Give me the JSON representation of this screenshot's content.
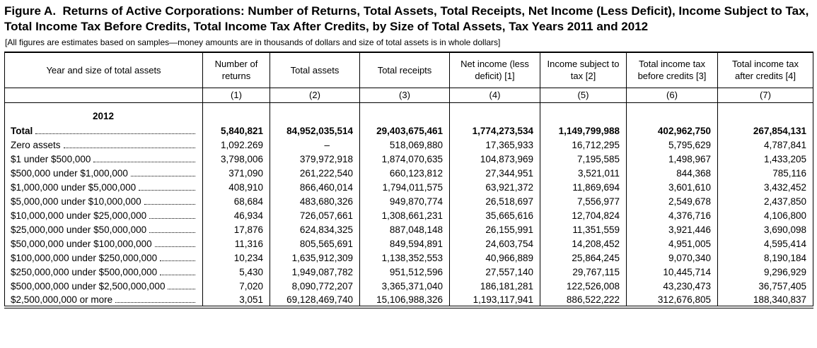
{
  "colors": {
    "text": "#000000",
    "background": "#ffffff",
    "border": "#000000"
  },
  "title": "Figure A.  Returns of Active Corporations: Number of Returns, Total Assets, Total Receipts, Net Income (Less Deficit), Income Subject to Tax, Total Income Tax Before Credits, Total Income Tax After Credits, by Size of Total Assets, Tax Years 2011 and 2012",
  "note": "[All figures are estimates based on samples—money amounts are in thousands of dollars and size of total assets is in whole dollars]",
  "table": {
    "columns": [
      {
        "label": "Year and size of total assets",
        "number": ""
      },
      {
        "label": "Number of returns",
        "number": "(1)"
      },
      {
        "label": "Total assets",
        "number": "(2)"
      },
      {
        "label": "Total receipts",
        "number": "(3)"
      },
      {
        "label": "Net income (less deficit) [1]",
        "number": "(4)"
      },
      {
        "label": "Income subject to tax [2]",
        "number": "(5)"
      },
      {
        "label": "Total income tax before credits [3]",
        "number": "(6)"
      },
      {
        "label": "Total income tax after credits [4]",
        "number": "(7)"
      }
    ],
    "section": "2012",
    "rows": [
      {
        "label": "Total",
        "bold": true,
        "values": [
          "5,840,821",
          "84,952,035,514",
          "29,403,675,461",
          "1,774,273,534",
          "1,149,799,988",
          "402,962,750",
          "267,854,131"
        ]
      },
      {
        "label": "Zero assets",
        "bold": false,
        "values": [
          "1,092.269",
          "–",
          "518,069,880",
          "17,365,933",
          "16,712,295",
          "5,795,629",
          "4,787,841"
        ]
      },
      {
        "label": "$1 under $500,000",
        "bold": false,
        "values": [
          "3,798,006",
          "379,972,918",
          "1,874,070,635",
          "104,873,969",
          "7,195,585",
          "1,498,967",
          "1,433,205"
        ]
      },
      {
        "label": "$500,000 under $1,000,000",
        "bold": false,
        "values": [
          "371,090",
          "261,222,540",
          "660,123,812",
          "27,344,951",
          "3,521,011",
          "844,368",
          "785,116"
        ]
      },
      {
        "label": "$1,000,000 under $5,000,000",
        "bold": false,
        "values": [
          "408,910",
          "866,460,014",
          "1,794,011,575",
          "63,921,372",
          "11,869,694",
          "3,601,610",
          "3,432,452"
        ]
      },
      {
        "label": "$5,000,000 under $10,000,000",
        "bold": false,
        "values": [
          "68,684",
          "483,680,326",
          "949,870,774",
          "26,518,697",
          "7,556,977",
          "2,549,678",
          "2,437,850"
        ]
      },
      {
        "label": "$10,000,000 under $25,000,000",
        "bold": false,
        "values": [
          "46,934",
          "726,057,661",
          "1,308,661,231",
          "35,665,616",
          "12,704,824",
          "4,376,716",
          "4,106,800"
        ]
      },
      {
        "label": "$25,000,000 under $50,000,000",
        "bold": false,
        "values": [
          "17,876",
          "624,834,325",
          "887,048,148",
          "26,155,991",
          "11,351,559",
          "3,921,446",
          "3,690,098"
        ]
      },
      {
        "label": "$50,000,000 under $100,000,000",
        "bold": false,
        "values": [
          "11,316",
          "805,565,691",
          "849,594,891",
          "24,603,754",
          "14,208,452",
          "4,951,005",
          "4,595,414"
        ]
      },
      {
        "label": "$100,000,000 under $250,000,000",
        "bold": false,
        "values": [
          "10,234",
          "1,635,912,309",
          "1,138,352,553",
          "40,966,889",
          "25,864,245",
          "9,070,340",
          "8,190,184"
        ]
      },
      {
        "label": "$250,000,000 under $500,000,000",
        "bold": false,
        "values": [
          "5,430",
          "1,949,087,782",
          "951,512,596",
          "27,557,140",
          "29,767,115",
          "10,445,714",
          "9,296,929"
        ]
      },
      {
        "label": "$500,000,000 under $2,500,000,000",
        "bold": false,
        "values": [
          "7,020",
          "8,090,772,207",
          "3,365,371,040",
          "186,181,281",
          "122,526,008",
          "43,230,473",
          "36,757,405"
        ]
      },
      {
        "label": "$2,500,000,000 or more",
        "bold": false,
        "values": [
          "3,051",
          "69,128,469,740",
          "15,106,988,326",
          "1,193,117,941",
          "886,522,222",
          "312,676,805",
          "188,340,837"
        ]
      }
    ]
  }
}
